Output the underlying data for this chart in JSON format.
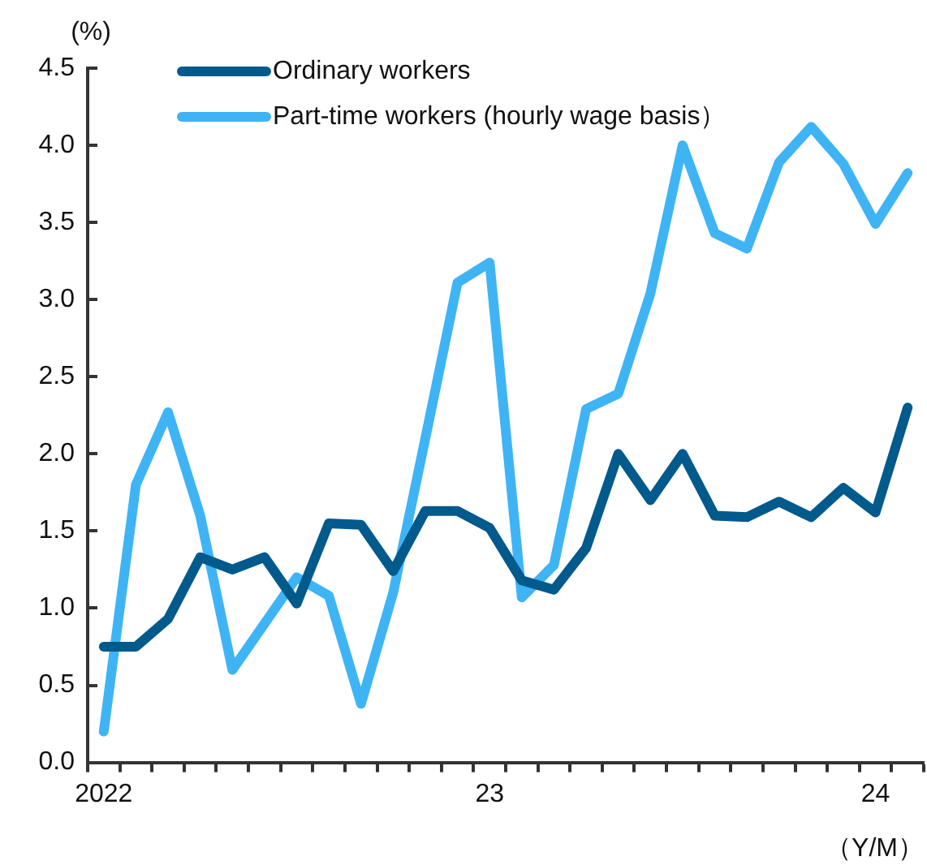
{
  "chart_data": {
    "type": "line",
    "ylabel": "(%)",
    "xlabel": "（Y/M）",
    "categories": [
      "2022",
      null,
      null,
      null,
      null,
      null,
      null,
      null,
      null,
      null,
      null,
      null,
      "23",
      null,
      null,
      null,
      null,
      null,
      null,
      null,
      null,
      null,
      null,
      null,
      "24",
      null
    ],
    "series": [
      {
        "name": "Ordinary workers",
        "color": "#005a8c",
        "values": [
          0.75,
          0.75,
          0.93,
          1.33,
          1.25,
          1.33,
          1.03,
          1.55,
          1.54,
          1.24,
          1.63,
          1.63,
          1.52,
          1.18,
          1.12,
          1.39,
          2.0,
          1.7,
          2.0,
          1.6,
          1.59,
          1.69,
          1.59,
          1.78,
          1.62,
          2.3
        ]
      },
      {
        "name": "Part-time workers (hourly wage basis）",
        "color": "#3fb4f5",
        "values": [
          0.2,
          1.8,
          2.27,
          1.6,
          0.6,
          0.9,
          1.2,
          1.08,
          0.38,
          1.1,
          2.1,
          3.11,
          3.24,
          1.07,
          1.28,
          2.29,
          2.39,
          3.04,
          4.0,
          3.43,
          3.33,
          3.89,
          4.12,
          3.88,
          3.49,
          3.82
        ]
      }
    ],
    "ylim": [
      0,
      4.5
    ],
    "yticks": [
      {
        "value": 0,
        "label": "0.0"
      },
      {
        "value": 0.5,
        "label": "0.5"
      },
      {
        "value": 1,
        "label": "1.0"
      },
      {
        "value": 1.5,
        "label": "1.5"
      },
      {
        "value": 2,
        "label": "2.0"
      },
      {
        "value": 2.5,
        "label": "2.5"
      },
      {
        "value": 3,
        "label": "3.0"
      },
      {
        "value": 3.5,
        "label": "3.5"
      },
      {
        "value": 4,
        "label": "4.0"
      },
      {
        "value": 4.5,
        "label": "4.5"
      }
    ],
    "grid": false,
    "legend": "top left",
    "marker": "none",
    "line_style": "solid"
  }
}
